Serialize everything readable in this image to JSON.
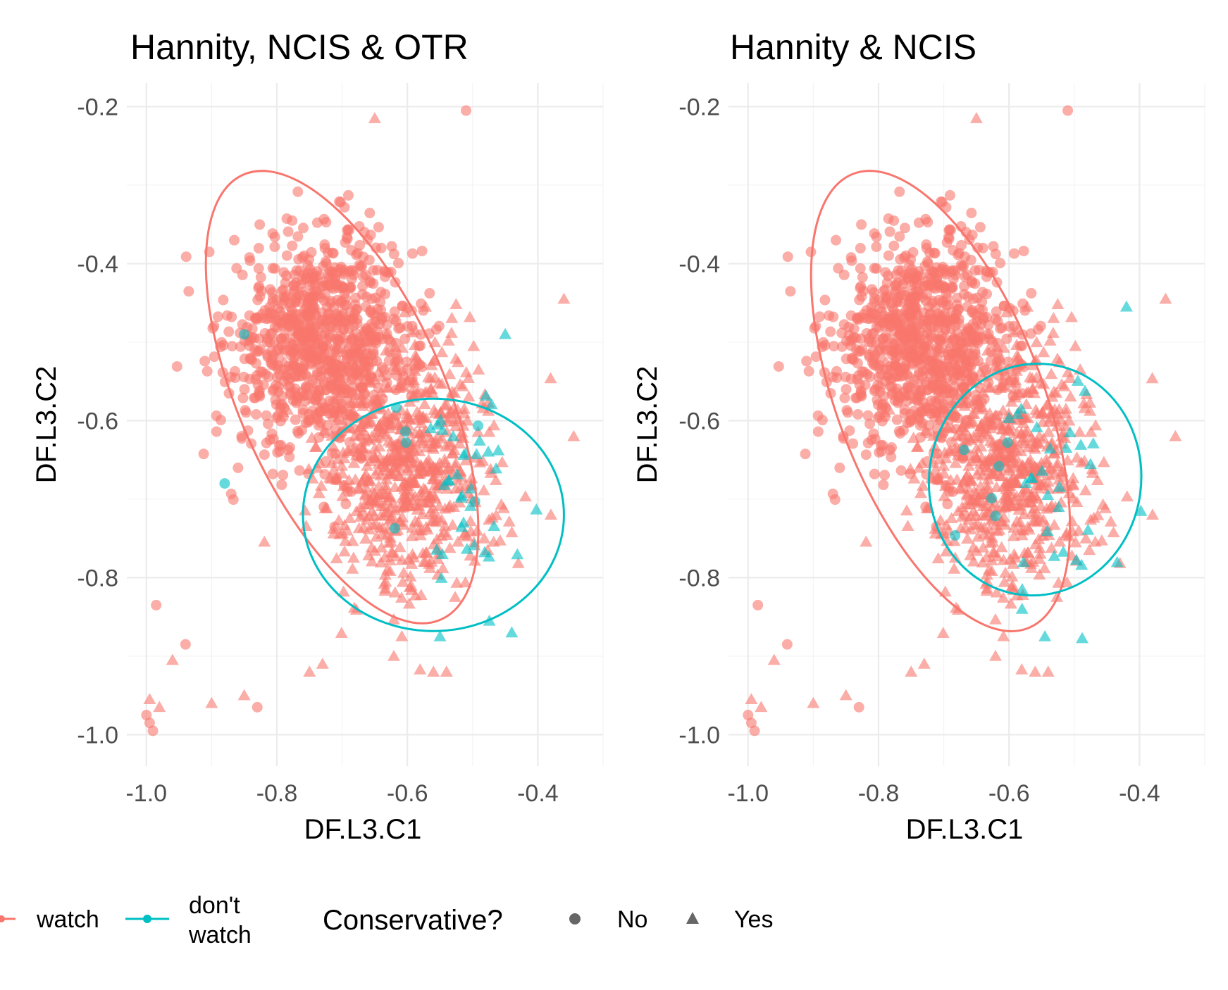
{
  "chart_data": [
    {
      "type": "scatter",
      "title": "Hannity, NCIS & OTR",
      "xlabel": "DF.L3.C1",
      "ylabel": "DF.L3.C2",
      "xlim": [
        -1.03,
        -0.3
      ],
      "ylim": [
        -1.04,
        -0.17
      ],
      "x_ticks": [
        -1.0,
        -0.8,
        -0.6,
        -0.4
      ],
      "x_tick_labels": [
        "-1.0",
        "-0.8",
        "-0.6",
        "-0.4"
      ],
      "y_ticks": [
        -1.0,
        -0.8,
        -0.6,
        -0.4,
        -0.2
      ],
      "y_tick_labels": [
        "-1.0",
        "-0.8",
        "-0.6",
        "-0.4",
        "-0.2"
      ],
      "grid": true,
      "ellipses": [
        {
          "group": "watch",
          "color": "#F8766D",
          "center": [
            -0.7,
            -0.57
          ],
          "rx": 0.157,
          "ry": 0.31,
          "rotation_deg": -24
        },
        {
          "group": "don't watch",
          "color": "#00BFC4",
          "center": [
            -0.56,
            -0.72
          ],
          "rx": 0.2,
          "ry": 0.148,
          "rotation_deg": 0
        }
      ],
      "clusters": [
        {
          "group": "watch",
          "conservative": "No",
          "center": [
            -0.73,
            -0.5
          ],
          "sd": [
            0.07,
            0.07
          ],
          "n": 900
        },
        {
          "group": "watch",
          "conservative": "Yes",
          "center": [
            -0.6,
            -0.66
          ],
          "sd": [
            0.07,
            0.08
          ],
          "n": 650
        },
        {
          "group": "don't watch",
          "conservative": "Yes",
          "center": [
            -0.5,
            -0.7
          ],
          "sd": [
            0.04,
            0.07
          ],
          "n": 35
        },
        {
          "group": "don't watch",
          "conservative": "No",
          "center": [
            -0.6,
            -0.7
          ],
          "sd": [
            0.06,
            0.05
          ],
          "n": 6
        }
      ],
      "outliers": [
        {
          "x": -0.51,
          "y": -0.205,
          "group": "watch",
          "conservative": "No"
        },
        {
          "x": -0.65,
          "y": -0.215,
          "group": "watch",
          "conservative": "Yes"
        },
        {
          "x": -0.85,
          "y": -0.49,
          "group": "don't watch",
          "conservative": "No"
        },
        {
          "x": -0.88,
          "y": -0.68,
          "group": "don't watch",
          "conservative": "No"
        },
        {
          "x": -1.0,
          "y": -0.975,
          "group": "watch",
          "conservative": "No"
        },
        {
          "x": -0.99,
          "y": -0.995,
          "group": "watch",
          "conservative": "No"
        },
        {
          "x": -0.995,
          "y": -0.985,
          "group": "watch",
          "conservative": "No"
        },
        {
          "x": -0.985,
          "y": -0.835,
          "group": "watch",
          "conservative": "No"
        },
        {
          "x": -0.94,
          "y": -0.885,
          "group": "watch",
          "conservative": "No"
        },
        {
          "x": -0.83,
          "y": -0.965,
          "group": "watch",
          "conservative": "No"
        },
        {
          "x": -0.9,
          "y": -0.96,
          "group": "watch",
          "conservative": "Yes"
        },
        {
          "x": -0.85,
          "y": -0.95,
          "group": "watch",
          "conservative": "Yes"
        },
        {
          "x": -0.96,
          "y": -0.905,
          "group": "watch",
          "conservative": "Yes"
        },
        {
          "x": -0.995,
          "y": -0.955,
          "group": "watch",
          "conservative": "Yes"
        },
        {
          "x": -0.98,
          "y": -0.965,
          "group": "watch",
          "conservative": "Yes"
        },
        {
          "x": -0.75,
          "y": -0.92,
          "group": "watch",
          "conservative": "Yes"
        },
        {
          "x": -0.73,
          "y": -0.91,
          "group": "watch",
          "conservative": "Yes"
        },
        {
          "x": -0.56,
          "y": -0.92,
          "group": "watch",
          "conservative": "Yes"
        },
        {
          "x": -0.54,
          "y": -0.92,
          "group": "watch",
          "conservative": "Yes"
        },
        {
          "x": -0.36,
          "y": -0.445,
          "group": "watch",
          "conservative": "Yes"
        },
        {
          "x": -0.345,
          "y": -0.62,
          "group": "watch",
          "conservative": "Yes"
        },
        {
          "x": -0.38,
          "y": -0.72,
          "group": "watch",
          "conservative": "Yes"
        },
        {
          "x": -0.44,
          "y": -0.87,
          "group": "don't watch",
          "conservative": "Yes"
        },
        {
          "x": -0.55,
          "y": -0.875,
          "group": "don't watch",
          "conservative": "Yes"
        },
        {
          "x": -0.45,
          "y": -0.49,
          "group": "don't watch",
          "conservative": "Yes"
        }
      ]
    },
    {
      "type": "scatter",
      "title": "Hannity & NCIS",
      "xlabel": "DF.L3.C1",
      "ylabel": "DF.L3.C2",
      "xlim": [
        -1.03,
        -0.3
      ],
      "ylim": [
        -1.04,
        -0.17
      ],
      "x_ticks": [
        -1.0,
        -0.8,
        -0.6,
        -0.4
      ],
      "x_tick_labels": [
        "-1.0",
        "-0.8",
        "-0.6",
        "-0.4"
      ],
      "y_ticks": [
        -1.0,
        -0.8,
        -0.6,
        -0.4,
        -0.2
      ],
      "y_tick_labels": [
        "-1.0",
        "-0.8",
        "-0.6",
        "-0.4",
        "-0.2"
      ],
      "grid": true,
      "ellipses": [
        {
          "group": "watch",
          "color": "#F8766D",
          "center": [
            -0.705,
            -0.575
          ],
          "rx": 0.157,
          "ry": 0.31,
          "rotation_deg": -21
        },
        {
          "group": "don't watch",
          "color": "#00BFC4",
          "center": [
            -0.56,
            -0.675
          ],
          "rx": 0.178,
          "ry": 0.135,
          "rotation_deg": -82
        }
      ],
      "clusters": [
        {
          "group": "watch",
          "conservative": "No",
          "center": [
            -0.73,
            -0.5
          ],
          "sd": [
            0.07,
            0.07
          ],
          "n": 900
        },
        {
          "group": "watch",
          "conservative": "Yes",
          "center": [
            -0.6,
            -0.66
          ],
          "sd": [
            0.07,
            0.08
          ],
          "n": 650
        },
        {
          "group": "don't watch",
          "conservative": "Yes",
          "center": [
            -0.52,
            -0.7
          ],
          "sd": [
            0.05,
            0.08
          ],
          "n": 30
        },
        {
          "group": "don't watch",
          "conservative": "No",
          "center": [
            -0.6,
            -0.7
          ],
          "sd": [
            0.06,
            0.05
          ],
          "n": 6
        }
      ],
      "outliers": [
        {
          "x": -0.51,
          "y": -0.205,
          "group": "watch",
          "conservative": "No"
        },
        {
          "x": -0.65,
          "y": -0.215,
          "group": "watch",
          "conservative": "Yes"
        },
        {
          "x": -1.0,
          "y": -0.975,
          "group": "watch",
          "conservative": "No"
        },
        {
          "x": -0.99,
          "y": -0.995,
          "group": "watch",
          "conservative": "No"
        },
        {
          "x": -0.995,
          "y": -0.985,
          "group": "watch",
          "conservative": "No"
        },
        {
          "x": -0.985,
          "y": -0.835,
          "group": "watch",
          "conservative": "No"
        },
        {
          "x": -0.94,
          "y": -0.885,
          "group": "watch",
          "conservative": "No"
        },
        {
          "x": -0.83,
          "y": -0.965,
          "group": "watch",
          "conservative": "No"
        },
        {
          "x": -0.9,
          "y": -0.96,
          "group": "watch",
          "conservative": "Yes"
        },
        {
          "x": -0.85,
          "y": -0.95,
          "group": "watch",
          "conservative": "Yes"
        },
        {
          "x": -0.96,
          "y": -0.905,
          "group": "watch",
          "conservative": "Yes"
        },
        {
          "x": -0.995,
          "y": -0.955,
          "group": "watch",
          "conservative": "Yes"
        },
        {
          "x": -0.98,
          "y": -0.965,
          "group": "watch",
          "conservative": "Yes"
        },
        {
          "x": -0.75,
          "y": -0.92,
          "group": "watch",
          "conservative": "Yes"
        },
        {
          "x": -0.73,
          "y": -0.91,
          "group": "watch",
          "conservative": "Yes"
        },
        {
          "x": -0.56,
          "y": -0.92,
          "group": "watch",
          "conservative": "Yes"
        },
        {
          "x": -0.54,
          "y": -0.92,
          "group": "watch",
          "conservative": "Yes"
        },
        {
          "x": -0.36,
          "y": -0.445,
          "group": "watch",
          "conservative": "Yes"
        },
        {
          "x": -0.345,
          "y": -0.62,
          "group": "watch",
          "conservative": "Yes"
        },
        {
          "x": -0.38,
          "y": -0.72,
          "group": "watch",
          "conservative": "Yes"
        },
        {
          "x": -0.42,
          "y": -0.455,
          "group": "don't watch",
          "conservative": "Yes"
        },
        {
          "x": -0.545,
          "y": -0.875,
          "group": "don't watch",
          "conservative": "Yes"
        },
        {
          "x": -0.58,
          "y": -0.84,
          "group": "don't watch",
          "conservative": "Yes"
        }
      ]
    }
  ],
  "colors": {
    "watch": "#F8766D",
    "dont_watch": "#00BFC4",
    "shape_key": "#666666",
    "grid": "#ebebeb"
  },
  "legend": {
    "group_items": [
      {
        "line1": "watch",
        "line2": "",
        "color": "#F8766D"
      },
      {
        "line1": "don't",
        "line2": "watch",
        "color": "#00BFC4"
      }
    ],
    "shape_title": "Conservative?",
    "shape_items": [
      {
        "label": "No",
        "shape": "circle"
      },
      {
        "label": "Yes",
        "shape": "triangle"
      }
    ]
  }
}
